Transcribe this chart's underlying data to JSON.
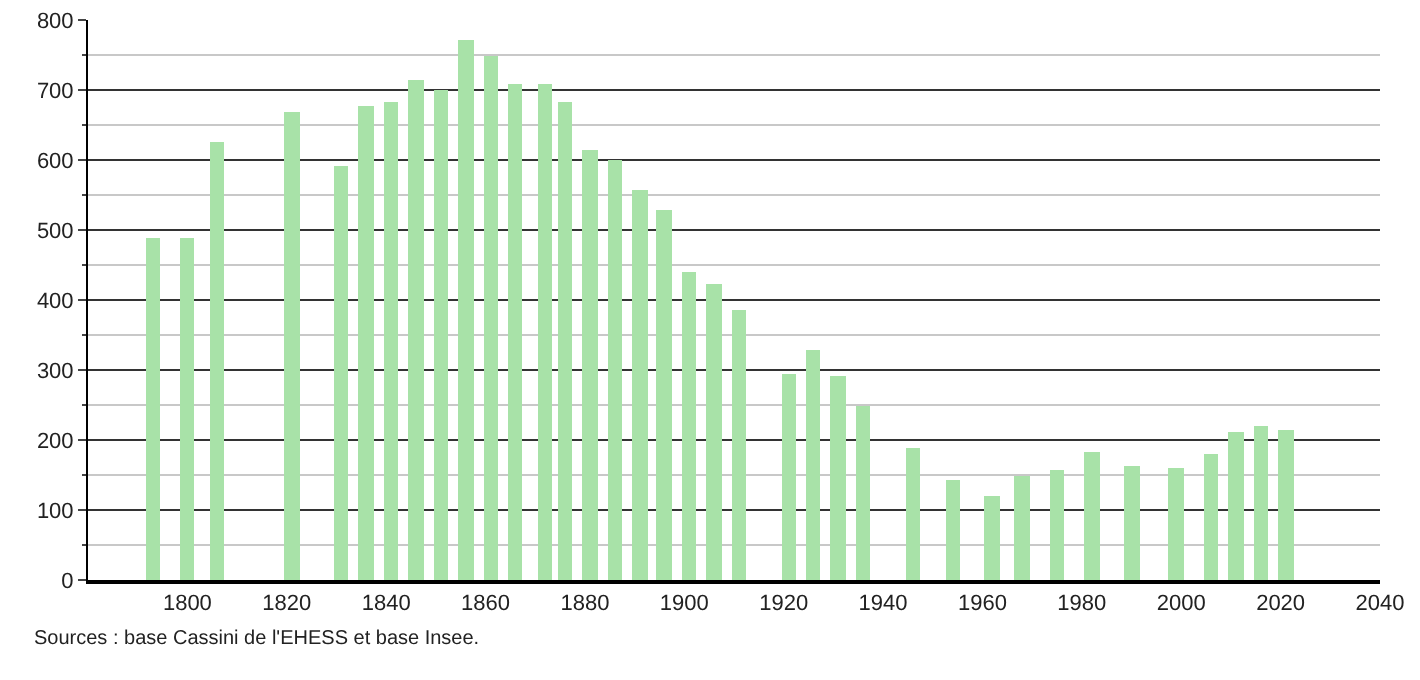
{
  "chart_data": {
    "type": "bar",
    "x": [
      1793,
      1800,
      1806,
      1821,
      1831,
      1836,
      1841,
      1846,
      1851,
      1856,
      1861,
      1866,
      1872,
      1876,
      1881,
      1886,
      1891,
      1896,
      1901,
      1906,
      1911,
      1921,
      1926,
      1931,
      1936,
      1946,
      1954,
      1962,
      1968,
      1975,
      1982,
      1990,
      1999,
      2006,
      2011,
      2016,
      2021
    ],
    "values": [
      490,
      488,
      625,
      668,
      592,
      677,
      682,
      713,
      700,
      771,
      750,
      710,
      710,
      684,
      614,
      600,
      558,
      528,
      441,
      423,
      387,
      295,
      330,
      291,
      249,
      189,
      142,
      120,
      150,
      158,
      183,
      164,
      161,
      181,
      211,
      219,
      214
    ],
    "color": "#a8e2a8",
    "xlim": [
      1780,
      2040
    ],
    "xticks": [
      1800,
      1820,
      1840,
      1860,
      1880,
      1900,
      1920,
      1940,
      1960,
      1980,
      2000,
      2020,
      2040
    ],
    "ylim": [
      0,
      800
    ],
    "yticks": [
      0,
      100,
      200,
      300,
      400,
      500,
      600,
      700,
      800
    ],
    "grid": "y",
    "legend": false,
    "annotations": [
      "Sources : base Cassini de l'EHESS et base Insee."
    ]
  }
}
